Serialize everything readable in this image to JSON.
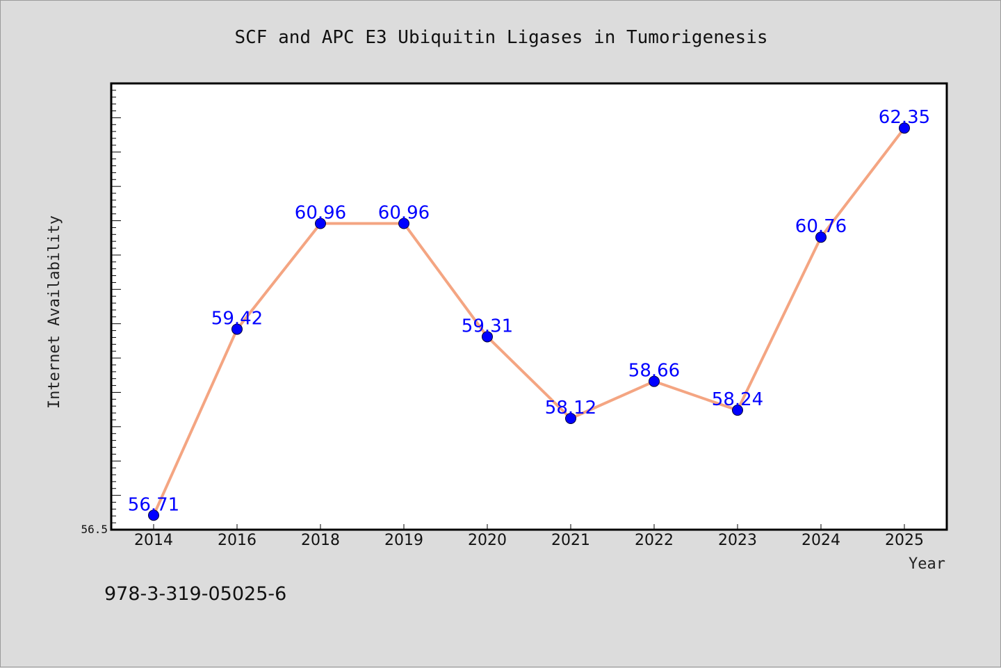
{
  "chart_data": {
    "type": "line",
    "title": "SCF and APC E3 Ubiquitin Ligases in Tumorigenesis",
    "xlabel": "Year",
    "ylabel": "Internet Availability",
    "categories": [
      "2014",
      "2016",
      "2018",
      "2019",
      "2020",
      "2021",
      "2022",
      "2023",
      "2024",
      "2025"
    ],
    "series": [
      {
        "values": [
          56.71,
          59.42,
          60.96,
          60.96,
          59.31,
          58.12,
          58.66,
          58.24,
          60.76,
          62.35
        ]
      }
    ],
    "data_labels": [
      "56.71",
      "59.42",
      "60.96",
      "60.96",
      "59.31",
      "58.12",
      "58.66",
      "58.24",
      "60.76",
      "62.35"
    ],
    "ylim": [
      56.5,
      63.0
    ],
    "ytick_labels": [
      "56.5"
    ],
    "grid": false,
    "line_color": "#f4a582",
    "marker_color": "#0000ff",
    "label_color": "#0000ff",
    "plot_background": "#ffffff",
    "figure_background": "#dcdcdc"
  },
  "footer": {
    "isbn": "978-3-319-05025-6"
  }
}
